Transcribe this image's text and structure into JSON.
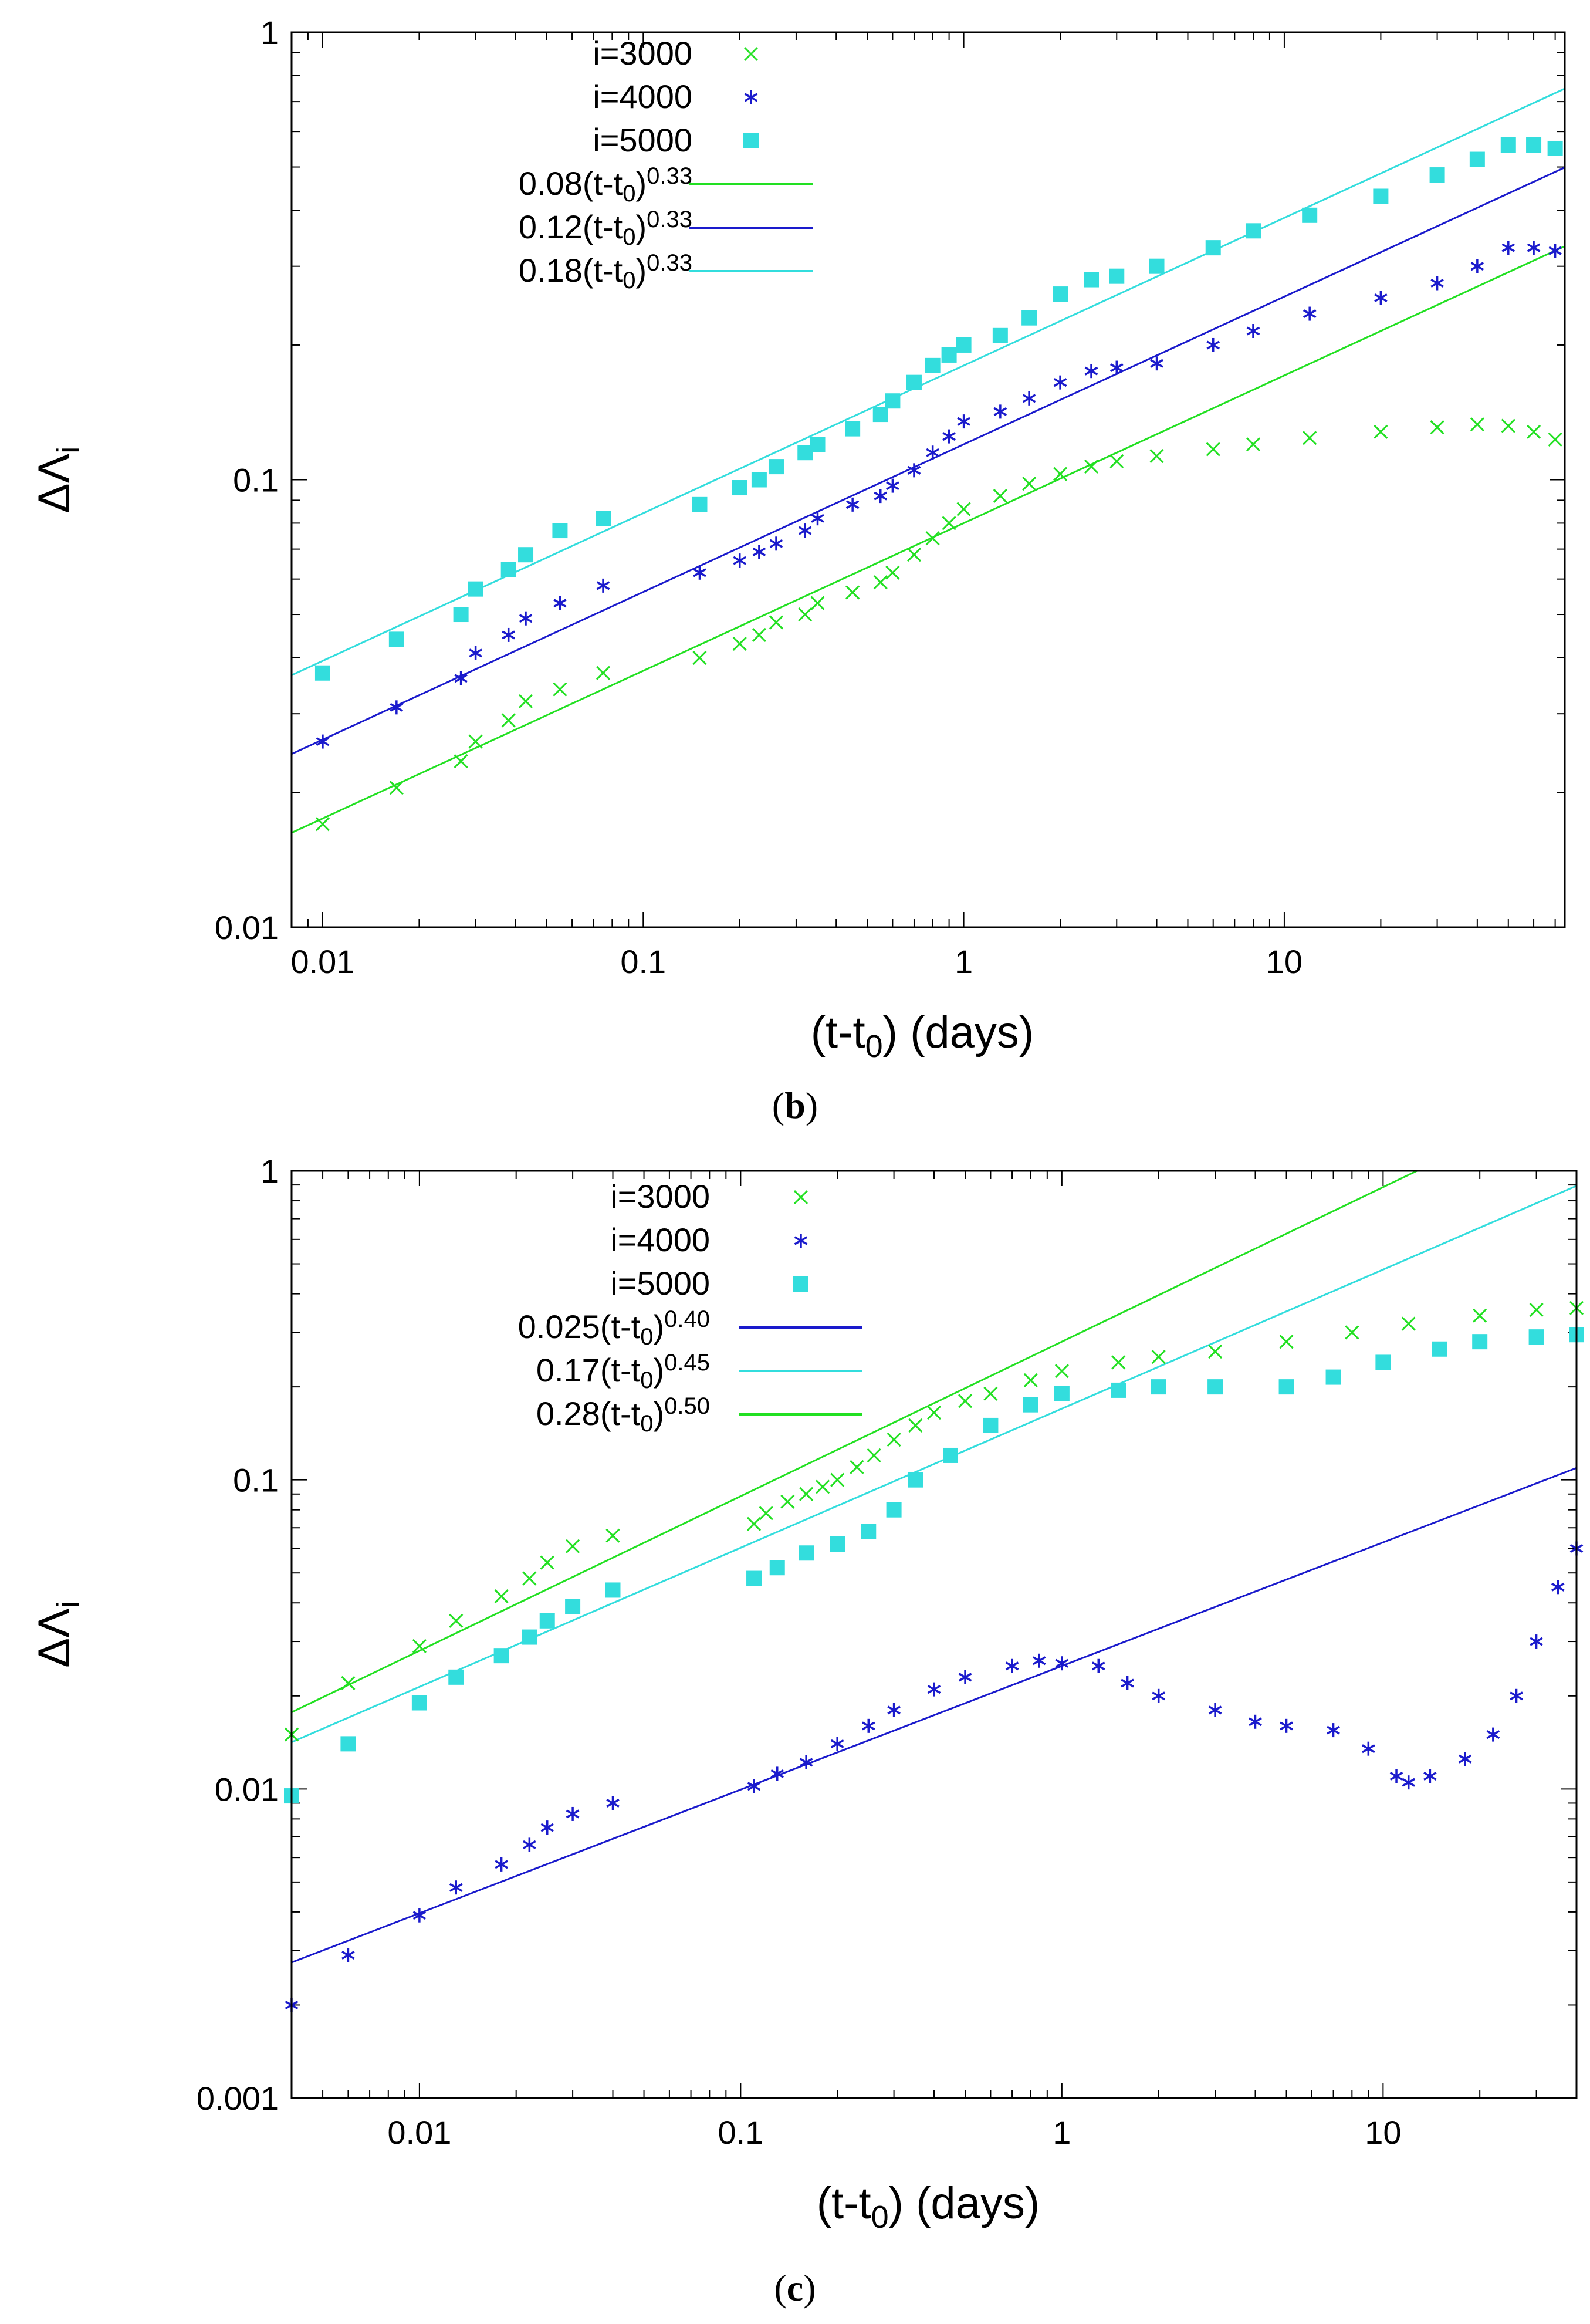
{
  "colors": {
    "green": "#22e022",
    "blue": "#1a1acc",
    "cyan": "#33dddd",
    "axis": "#000000"
  },
  "chart_data": [
    {
      "panel": "b",
      "caption": {
        "open": "(",
        "letter": "b",
        "close": ")"
      },
      "type": "scatter",
      "xscale": "log",
      "yscale": "log",
      "xlim": [
        0.008,
        75
      ],
      "ylim": [
        0.01,
        1
      ],
      "ylabel": {
        "main": "ΔΛ",
        "sub": "i"
      },
      "xlabel": {
        "pre": "(t-t",
        "sub": "0",
        "post": ") (days)"
      },
      "xticks": [
        {
          "v": 0.01,
          "label": "0.01"
        },
        {
          "v": 0.1,
          "label": "0.1"
        },
        {
          "v": 1,
          "label": "1"
        },
        {
          "v": 10,
          "label": "10"
        }
      ],
      "yticks": [
        {
          "v": 0.01,
          "label": "0.01"
        },
        {
          "v": 0.1,
          "label": "0.1"
        },
        {
          "v": 1,
          "label": "1"
        }
      ],
      "series": [
        {
          "name": "i=3000",
          "marker": "x",
          "color": "green",
          "points": [
            [
              0.01,
              0.017
            ],
            [
              0.017,
              0.0205
            ],
            [
              0.027,
              0.0235
            ],
            [
              0.03,
              0.026
            ],
            [
              0.038,
              0.029
            ],
            [
              0.043,
              0.032
            ],
            [
              0.055,
              0.034
            ],
            [
              0.075,
              0.037
            ],
            [
              0.15,
              0.04
            ],
            [
              0.2,
              0.043
            ],
            [
              0.23,
              0.045
            ],
            [
              0.26,
              0.048
            ],
            [
              0.32,
              0.05
            ],
            [
              0.35,
              0.053
            ],
            [
              0.45,
              0.056
            ],
            [
              0.55,
              0.059
            ],
            [
              0.6,
              0.062
            ],
            [
              0.7,
              0.068
            ],
            [
              0.8,
              0.074
            ],
            [
              0.9,
              0.08
            ],
            [
              1.0,
              0.086
            ],
            [
              1.3,
              0.092
            ],
            [
              1.6,
              0.098
            ],
            [
              2.0,
              0.103
            ],
            [
              2.5,
              0.107
            ],
            [
              3.0,
              0.11
            ],
            [
              4.0,
              0.113
            ],
            [
              6.0,
              0.117
            ],
            [
              8.0,
              0.12
            ],
            [
              12.0,
              0.124
            ],
            [
              20.0,
              0.128
            ],
            [
              30.0,
              0.131
            ],
            [
              40.0,
              0.133
            ],
            [
              50.0,
              0.132
            ],
            [
              60.0,
              0.128
            ],
            [
              70.0,
              0.123
            ]
          ]
        },
        {
          "name": "i=4000",
          "marker": "*",
          "color": "blue",
          "points": [
            [
              0.01,
              0.026
            ],
            [
              0.017,
              0.031
            ],
            [
              0.027,
              0.036
            ],
            [
              0.03,
              0.041
            ],
            [
              0.038,
              0.045
            ],
            [
              0.043,
              0.049
            ],
            [
              0.055,
              0.053
            ],
            [
              0.075,
              0.058
            ],
            [
              0.15,
              0.062
            ],
            [
              0.2,
              0.066
            ],
            [
              0.23,
              0.069
            ],
            [
              0.26,
              0.072
            ],
            [
              0.32,
              0.077
            ],
            [
              0.35,
              0.082
            ],
            [
              0.45,
              0.088
            ],
            [
              0.55,
              0.092
            ],
            [
              0.6,
              0.097
            ],
            [
              0.7,
              0.105
            ],
            [
              0.8,
              0.115
            ],
            [
              0.9,
              0.125
            ],
            [
              1.0,
              0.135
            ],
            [
              1.3,
              0.142
            ],
            [
              1.6,
              0.152
            ],
            [
              2.0,
              0.165
            ],
            [
              2.5,
              0.175
            ],
            [
              3.0,
              0.178
            ],
            [
              4.0,
              0.182
            ],
            [
              6.0,
              0.2
            ],
            [
              8.0,
              0.215
            ],
            [
              12.0,
              0.235
            ],
            [
              20.0,
              0.255
            ],
            [
              30.0,
              0.275
            ],
            [
              40.0,
              0.3
            ],
            [
              50.0,
              0.33
            ],
            [
              60.0,
              0.33
            ],
            [
              70.0,
              0.325
            ]
          ]
        },
        {
          "name": "i=5000",
          "marker": "square",
          "color": "cyan",
          "points": [
            [
              0.01,
              0.037
            ],
            [
              0.017,
              0.044
            ],
            [
              0.027,
              0.05
            ],
            [
              0.03,
              0.057
            ],
            [
              0.038,
              0.063
            ],
            [
              0.043,
              0.068
            ],
            [
              0.055,
              0.077
            ],
            [
              0.075,
              0.082
            ],
            [
              0.15,
              0.088
            ],
            [
              0.2,
              0.096
            ],
            [
              0.23,
              0.1
            ],
            [
              0.26,
              0.107
            ],
            [
              0.32,
              0.115
            ],
            [
              0.35,
              0.12
            ],
            [
              0.45,
              0.13
            ],
            [
              0.55,
              0.14
            ],
            [
              0.6,
              0.15
            ],
            [
              0.7,
              0.165
            ],
            [
              0.8,
              0.18
            ],
            [
              0.9,
              0.19
            ],
            [
              1.0,
              0.2
            ],
            [
              1.3,
              0.21
            ],
            [
              1.6,
              0.23
            ],
            [
              2.0,
              0.26
            ],
            [
              2.5,
              0.28
            ],
            [
              3.0,
              0.285
            ],
            [
              4.0,
              0.3
            ],
            [
              6.0,
              0.33
            ],
            [
              8.0,
              0.36
            ],
            [
              12.0,
              0.39
            ],
            [
              20.0,
              0.43
            ],
            [
              30.0,
              0.48
            ],
            [
              40.0,
              0.52
            ],
            [
              50.0,
              0.56
            ],
            [
              60.0,
              0.56
            ],
            [
              70.0,
              0.55
            ]
          ]
        }
      ],
      "fits": [
        {
          "name": "0.08(t-t0)^0.33",
          "coef": 0.08,
          "exp": 0.33,
          "color": "green",
          "label": {
            "pre": "0.08(t-t",
            "sub": "0",
            "mid": ")",
            "sup": "0.33"
          }
        },
        {
          "name": "0.12(t-t0)^0.33",
          "coef": 0.12,
          "exp": 0.33,
          "color": "blue",
          "label": {
            "pre": "0.12(t-t",
            "sub": "0",
            "mid": ")",
            "sup": "0.33"
          }
        },
        {
          "name": "0.18(t-t0)^0.33",
          "coef": 0.18,
          "exp": 0.33,
          "color": "cyan",
          "label": {
            "pre": "0.18(t-t",
            "sub": "0",
            "mid": ")",
            "sup": "0.33"
          }
        }
      ]
    },
    {
      "panel": "c",
      "caption": {
        "open": "(",
        "letter": "c",
        "close": ")"
      },
      "type": "scatter",
      "xscale": "log",
      "yscale": "log",
      "xlim": [
        0.004,
        40
      ],
      "ylim": [
        0.001,
        1
      ],
      "ylabel": {
        "main": "ΔΛ",
        "sub": "i"
      },
      "xlabel": {
        "pre": "(t-t",
        "sub": "0",
        "post": ") (days)"
      },
      "xticks": [
        {
          "v": 0.01,
          "label": "0.01"
        },
        {
          "v": 0.1,
          "label": "0.1"
        },
        {
          "v": 1,
          "label": "1"
        },
        {
          "v": 10,
          "label": "10"
        }
      ],
      "yticks": [
        {
          "v": 0.001,
          "label": "0.001"
        },
        {
          "v": 0.01,
          "label": "0.01"
        },
        {
          "v": 0.1,
          "label": "0.1"
        },
        {
          "v": 1,
          "label": "1"
        }
      ],
      "series": [
        {
          "name": "i=3000",
          "marker": "x",
          "color": "green",
          "points": [
            [
              0.004,
              0.015
            ],
            [
              0.006,
              0.022
            ],
            [
              0.01,
              0.029
            ],
            [
              0.013,
              0.035
            ],
            [
              0.018,
              0.042
            ],
            [
              0.022,
              0.048
            ],
            [
              0.025,
              0.054
            ],
            [
              0.03,
              0.061
            ],
            [
              0.04,
              0.066
            ],
            [
              0.11,
              0.072
            ],
            [
              0.12,
              0.078
            ],
            [
              0.14,
              0.085
            ],
            [
              0.16,
              0.09
            ],
            [
              0.18,
              0.095
            ],
            [
              0.2,
              0.1
            ],
            [
              0.23,
              0.11
            ],
            [
              0.26,
              0.12
            ],
            [
              0.3,
              0.135
            ],
            [
              0.35,
              0.15
            ],
            [
              0.4,
              0.165
            ],
            [
              0.5,
              0.18
            ],
            [
              0.6,
              0.19
            ],
            [
              0.8,
              0.21
            ],
            [
              1.0,
              0.225
            ],
            [
              1.5,
              0.24
            ],
            [
              2.0,
              0.25
            ],
            [
              3.0,
              0.26
            ],
            [
              5.0,
              0.28
            ],
            [
              8.0,
              0.3
            ],
            [
              12.0,
              0.32
            ],
            [
              20.0,
              0.34
            ],
            [
              30.0,
              0.355
            ],
            [
              40.0,
              0.36
            ]
          ]
        },
        {
          "name": "i=4000",
          "marker": "*",
          "color": "blue",
          "points": [
            [
              0.004,
              0.002
            ],
            [
              0.006,
              0.0029
            ],
            [
              0.01,
              0.0039
            ],
            [
              0.013,
              0.0048
            ],
            [
              0.018,
              0.0057
            ],
            [
              0.022,
              0.0066
            ],
            [
              0.025,
              0.0075
            ],
            [
              0.03,
              0.0083
            ],
            [
              0.04,
              0.009
            ],
            [
              0.11,
              0.0102
            ],
            [
              0.13,
              0.0112
            ],
            [
              0.16,
              0.0122
            ],
            [
              0.2,
              0.014
            ],
            [
              0.25,
              0.016
            ],
            [
              0.3,
              0.018
            ],
            [
              0.4,
              0.021
            ],
            [
              0.5,
              0.023
            ],
            [
              0.7,
              0.025
            ],
            [
              0.85,
              0.026
            ],
            [
              1.0,
              0.0255
            ],
            [
              1.3,
              0.025
            ],
            [
              1.6,
              0.022
            ],
            [
              2.0,
              0.02
            ],
            [
              3.0,
              0.018
            ],
            [
              4.0,
              0.0165
            ],
            [
              5.0,
              0.016
            ],
            [
              7.0,
              0.0155
            ],
            [
              9.0,
              0.0135
            ],
            [
              11.0,
              0.011
            ],
            [
              12.0,
              0.0105
            ],
            [
              14.0,
              0.011
            ],
            [
              18.0,
              0.0125
            ],
            [
              22.0,
              0.015
            ],
            [
              26.0,
              0.02
            ],
            [
              30.0,
              0.03
            ],
            [
              35.0,
              0.045
            ],
            [
              40.0,
              0.06
            ]
          ]
        },
        {
          "name": "i=5000",
          "marker": "square",
          "color": "cyan",
          "points": [
            [
              0.004,
              0.0095
            ],
            [
              0.006,
              0.014
            ],
            [
              0.01,
              0.019
            ],
            [
              0.013,
              0.023
            ],
            [
              0.018,
              0.027
            ],
            [
              0.022,
              0.031
            ],
            [
              0.025,
              0.035
            ],
            [
              0.03,
              0.039
            ],
            [
              0.04,
              0.044
            ],
            [
              0.11,
              0.048
            ],
            [
              0.13,
              0.052
            ],
            [
              0.16,
              0.058
            ],
            [
              0.2,
              0.062
            ],
            [
              0.25,
              0.068
            ],
            [
              0.3,
              0.08
            ],
            [
              0.35,
              0.1
            ],
            [
              0.45,
              0.12
            ],
            [
              0.6,
              0.15
            ],
            [
              0.8,
              0.175
            ],
            [
              1.0,
              0.19
            ],
            [
              1.5,
              0.195
            ],
            [
              2.0,
              0.2
            ],
            [
              3.0,
              0.2
            ],
            [
              5.0,
              0.2
            ],
            [
              7.0,
              0.215
            ],
            [
              10.0,
              0.24
            ],
            [
              15.0,
              0.265
            ],
            [
              20.0,
              0.28
            ],
            [
              30.0,
              0.29
            ],
            [
              40.0,
              0.295
            ]
          ]
        }
      ],
      "fits": [
        {
          "name": "0.025(t-t0)^0.40",
          "coef": 0.025,
          "exp": 0.4,
          "color": "blue",
          "label": {
            "pre": "0.025(t-t",
            "sub": "0",
            "mid": ")",
            "sup": "0.40"
          }
        },
        {
          "name": "0.17(t-t0)^0.45",
          "coef": 0.17,
          "exp": 0.45,
          "color": "cyan",
          "label": {
            "pre": "0.17(t-t",
            "sub": "0",
            "mid": ")",
            "sup": "0.45"
          }
        },
        {
          "name": "0.28(t-t0)^0.50",
          "coef": 0.28,
          "exp": 0.5,
          "color": "green",
          "label": {
            "pre": "0.28(t-t",
            "sub": "0",
            "mid": ")",
            "sup": "0.50"
          }
        }
      ]
    }
  ]
}
